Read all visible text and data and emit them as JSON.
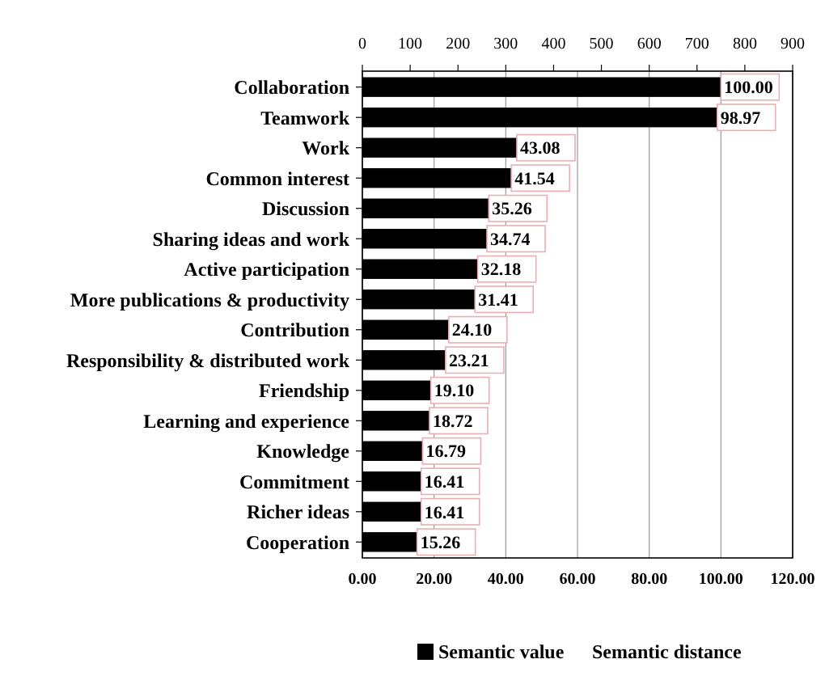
{
  "chart_data": {
    "type": "bar",
    "orientation": "horizontal",
    "categories": [
      "Collaboration",
      "Teamwork",
      "Work",
      "Common interest",
      "Discussion",
      "Sharing ideas and work",
      "Active participation",
      "More publications & productivity",
      "Contribution",
      "Responsibility & distributed work",
      "Friendship",
      "Learning and experience",
      "Knowledge",
      "Commitment",
      "Richer ideas",
      "Cooperation"
    ],
    "series": [
      {
        "name": "Semantic value",
        "color": "#000000",
        "values": [
          100.0,
          98.97,
          43.08,
          41.54,
          35.26,
          34.74,
          32.18,
          31.41,
          24.1,
          23.21,
          19.1,
          18.72,
          16.79,
          16.41,
          16.41,
          15.26
        ]
      }
    ],
    "value_labels": [
      "100.00",
      "98.97",
      "43.08",
      "41.54",
      "35.26",
      "34.74",
      "32.18",
      "31.41",
      "24.10",
      "23.21",
      "19.10",
      "18.72",
      "16.79",
      "16.41",
      "16.41",
      "15.26"
    ],
    "xlim": [
      0,
      120
    ],
    "xticks": [
      {
        "value": 0,
        "label": "0.00"
      },
      {
        "value": 20,
        "label": "20.00"
      },
      {
        "value": 40,
        "label": "40.00"
      },
      {
        "value": 60,
        "label": "60.00"
      },
      {
        "value": 80,
        "label": "80.00"
      },
      {
        "value": 100,
        "label": "100.00"
      },
      {
        "value": 120,
        "label": "120.00"
      }
    ],
    "x2lim": [
      0,
      900
    ],
    "x2ticks": [
      0,
      100,
      200,
      300,
      400,
      500,
      600,
      700,
      800,
      900
    ],
    "grid": "x",
    "legend": "bottom",
    "annotations": [
      "Semantic distance"
    ]
  }
}
